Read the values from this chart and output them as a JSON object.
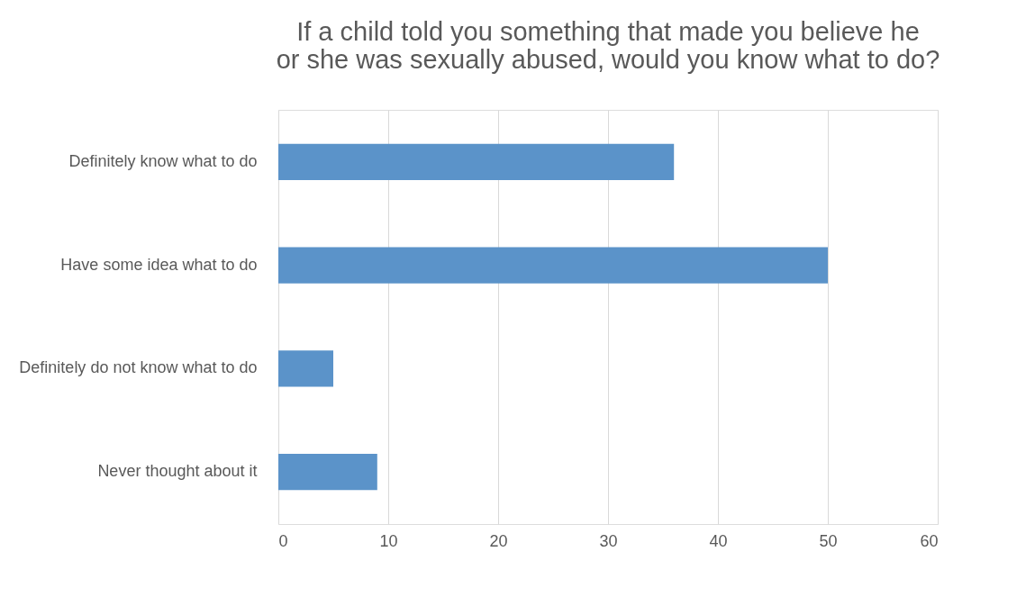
{
  "chart_data": {
    "type": "bar",
    "orientation": "horizontal",
    "title": "If a child told you something that made you believe he or she was sexually abused, would you know what to do?",
    "categories": [
      "Definitely know what to do",
      "Have some idea what to do",
      "Definitely do not know what to do",
      "Never thought about it"
    ],
    "values": [
      36,
      50,
      5,
      9
    ],
    "color": "#5b93c9",
    "xlim": [
      0,
      60
    ],
    "xticks": [
      0,
      10,
      20,
      30,
      40,
      50,
      60
    ],
    "grid": "x"
  }
}
